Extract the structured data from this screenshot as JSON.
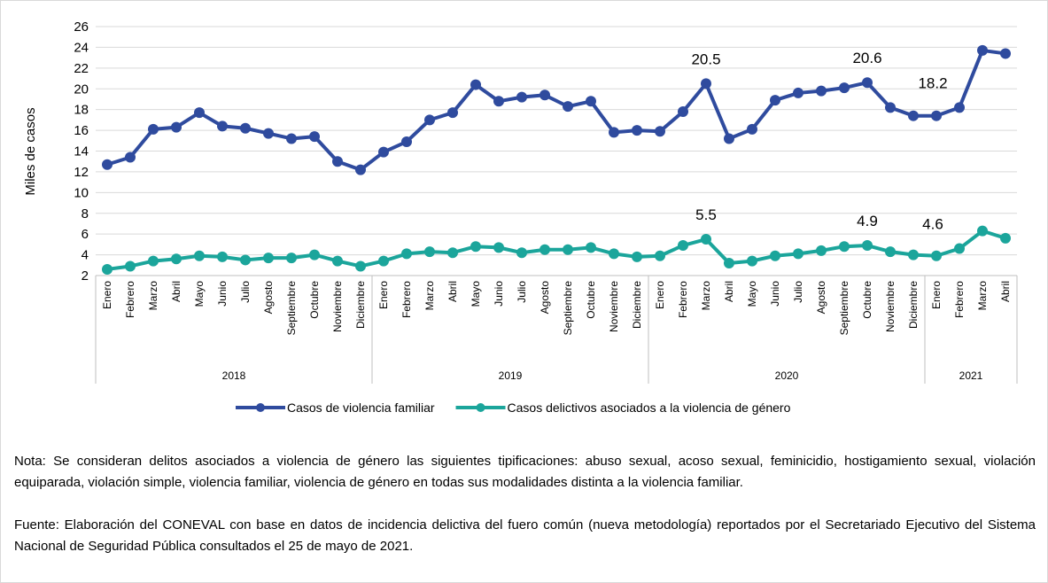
{
  "chart_data": {
    "type": "line",
    "y_label": "Miles de casos",
    "categories": [
      "Enero",
      "Febrero",
      "Marzo",
      "Abril",
      "Mayo",
      "Junio",
      "Julio",
      "Agosto",
      "Septiembre",
      "Octubre",
      "Noviembre",
      "Diciembre",
      "Enero",
      "Febrero",
      "Marzo",
      "Abril",
      "Mayo",
      "Junio",
      "Julio",
      "Agosto",
      "Septiembre",
      "Octubre",
      "Noviembre",
      "Diciembre",
      "Enero",
      "Febrero",
      "Marzo",
      "Abril",
      "Mayo",
      "Junio",
      "Julio",
      "Agosto",
      "Septiembre",
      "Octubre",
      "Noviembre",
      "Diciembre",
      "Enero",
      "Febrero",
      "Marzo",
      "Abril"
    ],
    "groups": [
      {
        "label": "2018",
        "size": 12
      },
      {
        "label": "2019",
        "size": 12
      },
      {
        "label": "2020",
        "size": 12
      },
      {
        "label": "2021",
        "size": 4
      }
    ],
    "series": [
      {
        "name": "Casos de violencia familiar",
        "color": "#2f4b9e",
        "labeled": [
          26,
          33,
          37
        ],
        "values": [
          12.7,
          13.4,
          16.1,
          16.3,
          17.7,
          16.4,
          16.2,
          15.7,
          15.2,
          15.4,
          13.0,
          12.2,
          13.9,
          14.9,
          17.0,
          17.7,
          20.4,
          18.8,
          19.2,
          19.4,
          18.3,
          18.8,
          15.8,
          16.0,
          15.9,
          17.8,
          20.5,
          15.2,
          16.1,
          18.9,
          19.6,
          19.8,
          20.1,
          20.6,
          18.2,
          17.4,
          17.4,
          18.2,
          23.7,
          23.4
        ]
      },
      {
        "name": "Casos delictivos asociados a la violencia de género",
        "color": "#1ba59b",
        "labeled": [
          26,
          33,
          37
        ],
        "values": [
          2.6,
          2.9,
          3.4,
          3.6,
          3.9,
          3.8,
          3.5,
          3.7,
          3.7,
          4.0,
          3.4,
          2.9,
          3.4,
          4.1,
          4.3,
          4.2,
          4.8,
          4.7,
          4.2,
          4.5,
          4.5,
          4.7,
          4.1,
          3.8,
          3.9,
          4.9,
          5.5,
          3.2,
          3.4,
          3.9,
          4.1,
          4.4,
          4.8,
          4.9,
          4.3,
          4.0,
          3.9,
          4.6,
          6.3,
          5.6
        ]
      }
    ],
    "ylim": [
      2,
      26
    ],
    "yticks": [
      2,
      4,
      6,
      8,
      10,
      12,
      14,
      16,
      18,
      20,
      22,
      24,
      26
    ],
    "grid": true,
    "legend": "bottom"
  },
  "notes": {
    "nota": "Nota: Se consideran delitos asociados a violencia de género las siguientes tipificaciones: abuso sexual, acoso sexual, feminicidio, hostigamiento sexual, violación equiparada, violación simple, violencia familiar, violencia de género en todas sus modalidades distinta a la violencia familiar.",
    "fuente": "Fuente: Elaboración del CONEVAL con base en datos de incidencia delictiva del fuero común (nueva metodología) reportados por el Secretariado Ejecutivo del Sistema Nacional de Seguridad Pública consultados el 25 de mayo de 2021."
  }
}
